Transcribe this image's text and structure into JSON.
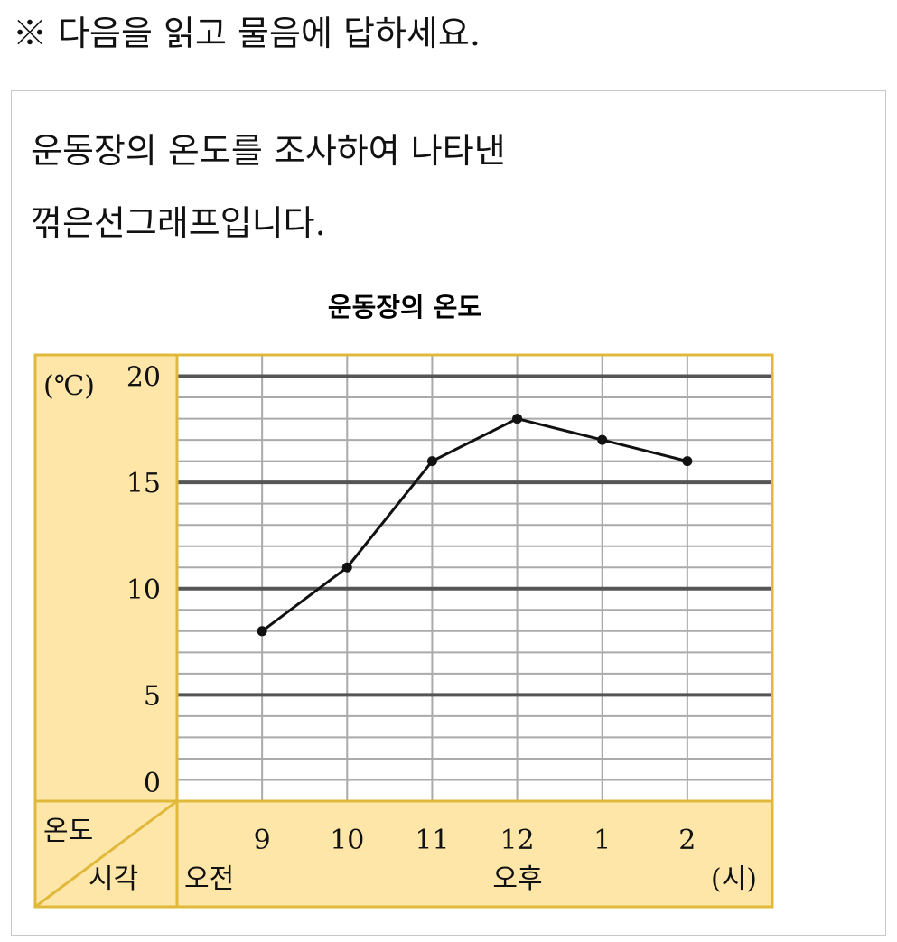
{
  "instruction": "※ 다음을 읽고 물음에 답하세요.",
  "question": {
    "line1": "운동장의 온도를 조사하여 나타낸",
    "line2": "꺾은선그래프입니다."
  },
  "chart_data": {
    "type": "line",
    "title": "운동장의 온도",
    "ylabel": "(℃)",
    "xlabel": "(시)",
    "row_header_top": "온도",
    "row_header_bottom": "시각",
    "period_labels": {
      "am": "오전",
      "pm": "오후"
    },
    "categories": [
      "9",
      "10",
      "11",
      "12",
      "1",
      "2"
    ],
    "values": [
      8,
      11,
      16,
      18,
      17,
      16
    ],
    "yticks": [
      0,
      5,
      10,
      15,
      20
    ],
    "ylim": [
      0,
      21
    ],
    "minor_step": 1,
    "grid": true,
    "colors": {
      "frame": "#e0b83a",
      "label_fill": "#fde6a8",
      "major_grid": "#555555",
      "minor_grid": "#aaaaaa",
      "line": "#111111"
    }
  }
}
